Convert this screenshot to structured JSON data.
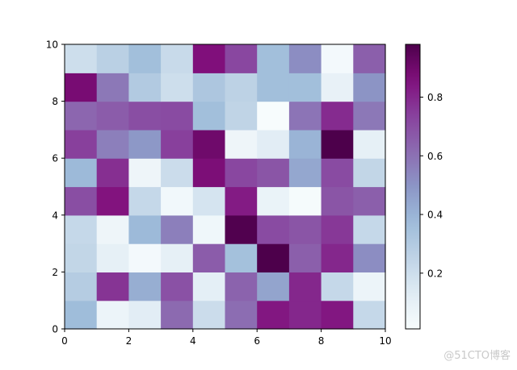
{
  "chart_data": {
    "type": "heatmap",
    "colormap": "BuPu",
    "xlim": [
      0,
      10
    ],
    "ylim": [
      0,
      10
    ],
    "x_ticks": [
      "0",
      "2",
      "4",
      "6",
      "8",
      "10"
    ],
    "y_ticks": [
      "0",
      "2",
      "4",
      "6",
      "8",
      "10"
    ],
    "colorbar_range": [
      0.01,
      0.98
    ],
    "colorbar_ticks": [
      "0.2",
      "0.4",
      "0.6",
      "0.8"
    ],
    "colorbar_tick_values": [
      0.2,
      0.4,
      0.6,
      0.8
    ],
    "values": [
      [
        0.37,
        0.07,
        0.12,
        0.62,
        0.21,
        0.61,
        0.84,
        0.8,
        0.84,
        0.23
      ],
      [
        0.29,
        0.77,
        0.42,
        0.69,
        0.11,
        0.64,
        0.45,
        0.8,
        0.23,
        0.07
      ],
      [
        0.24,
        0.1,
        0.03,
        0.1,
        0.66,
        0.35,
        0.98,
        0.65,
        0.8,
        0.52
      ],
      [
        0.23,
        0.06,
        0.38,
        0.56,
        0.05,
        0.97,
        0.71,
        0.68,
        0.76,
        0.23
      ],
      [
        0.7,
        0.85,
        0.23,
        0.04,
        0.17,
        0.83,
        0.08,
        0.02,
        0.68,
        0.65
      ],
      [
        0.38,
        0.78,
        0.06,
        0.21,
        0.87,
        0.72,
        0.68,
        0.44,
        0.71,
        0.24
      ],
      [
        0.74,
        0.56,
        0.49,
        0.74,
        0.9,
        0.06,
        0.12,
        0.4,
        0.98,
        0.1
      ],
      [
        0.63,
        0.66,
        0.7,
        0.71,
        0.36,
        0.25,
        0.01,
        0.59,
        0.79,
        0.58
      ],
      [
        0.88,
        0.58,
        0.3,
        0.2,
        0.32,
        0.26,
        0.36,
        0.36,
        0.09,
        0.5
      ],
      [
        0.2,
        0.27,
        0.36,
        0.22,
        0.86,
        0.72,
        0.36,
        0.52,
        0.03,
        0.65
      ]
    ]
  },
  "watermark": "@51CTO博客"
}
